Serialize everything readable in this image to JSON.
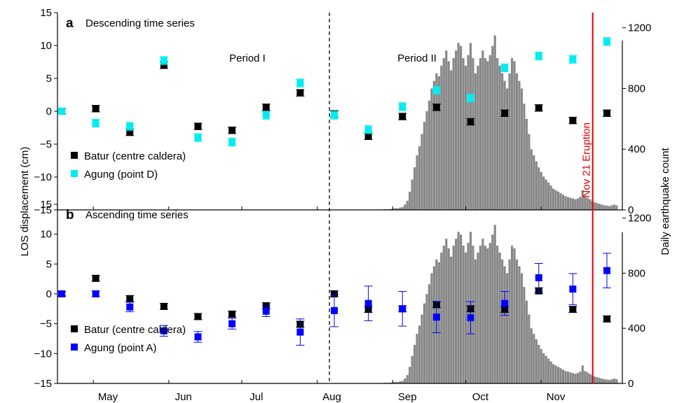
{
  "ylabel_left": "LOS displacement (cm)",
  "ylabel_right": "Daily earthquake count",
  "x_months": [
    "May",
    "Jun",
    "Jul",
    "Aug",
    "Sep",
    "Oct",
    "Nov"
  ],
  "eruption_label": "Nov 21 Eruption",
  "colors": {
    "batur": "#000000",
    "agung_a": "#00ecf0",
    "agung_b": "#0000ff",
    "bars": "#888888",
    "eruption": "#e00000"
  },
  "chart_data": [
    {
      "type": "scatter",
      "panel_letter": "a",
      "title": "Descending time series",
      "period_labels": [
        "Period I",
        "Period II"
      ],
      "ylim": [
        -15,
        15
      ],
      "y2lim": [
        0,
        1300
      ],
      "y2_ticks": [
        0,
        400,
        800,
        1200
      ],
      "series": [
        {
          "name": "Batur (centre caldera)",
          "color": "#000000",
          "x": [
            "2017-04-18",
            "2017-05-02",
            "2017-05-16",
            "2017-05-30",
            "2017-06-13",
            "2017-06-27",
            "2017-07-11",
            "2017-07-25",
            "2017-08-08",
            "2017-08-22",
            "2017-09-05",
            "2017-09-19",
            "2017-10-03",
            "2017-10-17",
            "2017-10-31",
            "2017-11-14",
            "2017-11-28"
          ],
          "y": [
            0.0,
            0.4,
            -3.2,
            7.0,
            -2.3,
            -2.9,
            0.6,
            2.8,
            -0.4,
            -3.8,
            -0.8,
            0.6,
            -1.6,
            -0.3,
            0.5,
            -1.4,
            -0.3
          ],
          "err": [
            0.4,
            0.5,
            0.5,
            0.5,
            0.5,
            0.5,
            0.5,
            0.5,
            0.5,
            0.5,
            0.5,
            0.5,
            0.5,
            0.5,
            0.5,
            0.5,
            0.5
          ]
        },
        {
          "name": "Agung (point D)",
          "color": "#00ecf0",
          "x": [
            "2017-04-18",
            "2017-05-02",
            "2017-05-16",
            "2017-05-30",
            "2017-06-13",
            "2017-06-27",
            "2017-07-11",
            "2017-07-25",
            "2017-08-08",
            "2017-08-22",
            "2017-09-05",
            "2017-09-19",
            "2017-10-03",
            "2017-10-17",
            "2017-10-31",
            "2017-11-14",
            "2017-11-28"
          ],
          "y": [
            0.0,
            -1.8,
            -2.3,
            7.7,
            -4.0,
            -4.7,
            -0.6,
            4.3,
            -0.6,
            -2.8,
            0.7,
            3.2,
            2.0,
            6.6,
            8.4,
            7.9,
            10.6
          ],
          "err": [
            0.5,
            0.6,
            0.6,
            0.6,
            0.6,
            0.6,
            0.6,
            0.6,
            0.6,
            0.6,
            0.6,
            0.6,
            0.6,
            0.6,
            0.6,
            0.6,
            0.6
          ]
        }
      ],
      "legend": [
        "Batur (centre caldera)",
        "Agung (point D)"
      ],
      "legend_position": "bottom-left"
    },
    {
      "type": "scatter",
      "panel_letter": "b",
      "title": "Ascending time series",
      "ylim": [
        -15,
        15
      ],
      "y2lim": [
        0,
        1300
      ],
      "y2_ticks": [
        0,
        400,
        800,
        1200
      ],
      "series": [
        {
          "name": "Batur (centre caldera)",
          "color": "#000000",
          "x": [
            "2017-04-18",
            "2017-05-02",
            "2017-05-16",
            "2017-05-30",
            "2017-06-13",
            "2017-06-27",
            "2017-07-11",
            "2017-07-25",
            "2017-08-08",
            "2017-08-22",
            "2017-09-05",
            "2017-09-19",
            "2017-10-03",
            "2017-10-17",
            "2017-10-31",
            "2017-11-14",
            "2017-11-28"
          ],
          "y": [
            0.0,
            2.6,
            -0.8,
            -2.1,
            -3.8,
            -3.4,
            -2.0,
            -5.1,
            0.0,
            -2.6,
            -2.5,
            -1.8,
            -2.5,
            -2.6,
            0.5,
            -2.6,
            -4.2
          ],
          "err": [
            0.4,
            0.5,
            0.5,
            0.5,
            0.5,
            0.5,
            0.5,
            0.5,
            0.5,
            0.5,
            0.5,
            0.5,
            0.5,
            0.5,
            0.5,
            0.5,
            0.5
          ]
        },
        {
          "name": "Agung (point A)",
          "color": "#0000ff",
          "x": [
            "2017-04-18",
            "2017-05-02",
            "2017-05-16",
            "2017-05-30",
            "2017-06-13",
            "2017-06-27",
            "2017-07-11",
            "2017-07-25",
            "2017-08-08",
            "2017-08-22",
            "2017-09-05",
            "2017-09-19",
            "2017-10-03",
            "2017-10-17",
            "2017-10-31",
            "2017-11-14",
            "2017-11-28"
          ],
          "y": [
            0.0,
            0.0,
            -2.2,
            -6.2,
            -7.2,
            -5.0,
            -2.9,
            -6.4,
            -2.8,
            -1.6,
            -2.5,
            -3.9,
            -4.0,
            -1.6,
            2.7,
            0.8,
            3.9
          ],
          "err": [
            0.3,
            0.5,
            0.8,
            0.9,
            0.9,
            0.9,
            0.9,
            2.2,
            2.7,
            2.9,
            2.9,
            2.6,
            2.7,
            2.0,
            2.4,
            2.6,
            2.9
          ]
        }
      ],
      "legend": [
        "Batur (centre caldera)",
        "Agung (point A)"
      ],
      "legend_position": "bottom-left"
    }
  ],
  "earthquake_counts": {
    "type": "bar",
    "start_date": "2017-08-21",
    "values": [
      1,
      1,
      2,
      1,
      2,
      3,
      2,
      3,
      5,
      4,
      6,
      8,
      12,
      10,
      15,
      18,
      35,
      60,
      120,
      200,
      280,
      360,
      420,
      500,
      580,
      650,
      720,
      800,
      850,
      900,
      880,
      950,
      1000,
      1050,
      980,
      920,
      1000,
      1050,
      1100,
      1080,
      1000,
      950,
      1020,
      1100,
      1000,
      900,
      950,
      1000,
      1050,
      1000,
      980,
      1020,
      1080,
      1150,
      1000,
      950,
      900,
      850,
      800,
      900,
      1000,
      980,
      900,
      850,
      800,
      700,
      600,
      500,
      400,
      360,
      320,
      280,
      250,
      220,
      200,
      180,
      160,
      140,
      130,
      120,
      110,
      100,
      90,
      85,
      80,
      75,
      70,
      75,
      85,
      130,
      90,
      80,
      70,
      60,
      50,
      45,
      40,
      35,
      30,
      28,
      25,
      30,
      35,
      30
    ]
  }
}
